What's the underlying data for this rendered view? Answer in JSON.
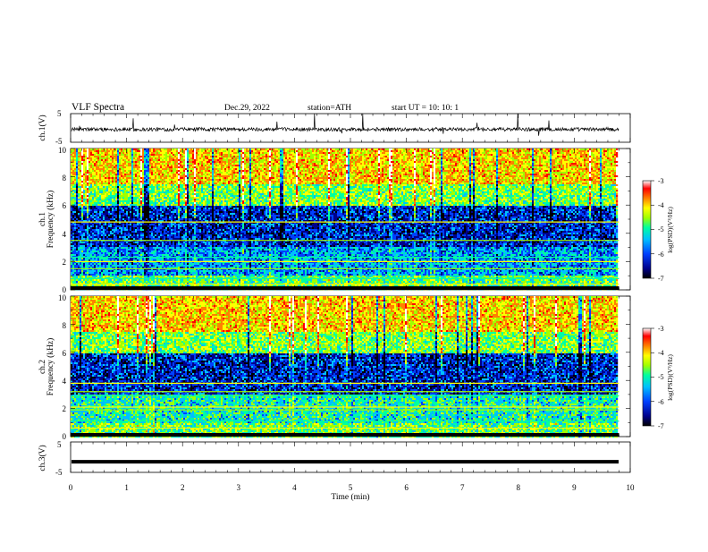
{
  "header": {
    "title": "VLF  Spectra",
    "date": "Dec.29, 2022",
    "station": "station=ATH",
    "start": "start  UT  =    10: 10: 1"
  },
  "chart_data": [
    {
      "type": "line",
      "name": "ch1_waveform",
      "ylabel": "ch.1(V)",
      "yticks": [
        "5",
        "-5"
      ],
      "ylim": [
        -5,
        5
      ],
      "xlim": [
        0,
        10
      ],
      "baseline": -0.5
    },
    {
      "type": "heatmap",
      "name": "ch1_spectrogram",
      "ylabel_top": "ch.1",
      "ylabel": "Frequency  (kHz)",
      "yticks": [
        "10",
        "8",
        "6",
        "4",
        "2",
        "0"
      ],
      "ylim": [
        0,
        10
      ],
      "xlim": [
        0,
        10
      ],
      "data_end_min": 9.8
    },
    {
      "type": "heatmap",
      "name": "ch2_spectrogram",
      "ylabel_top": "ch.2",
      "ylabel": "Frequency  (kHz)",
      "yticks": [
        "10",
        "8",
        "6",
        "4",
        "2",
        "0"
      ],
      "ylim": [
        0,
        10
      ],
      "xlim": [
        0,
        10
      ],
      "data_end_min": 9.8
    },
    {
      "type": "line",
      "name": "ch3_waveform",
      "ylabel": "ch.3(V)",
      "yticks": [
        "5",
        "-5"
      ],
      "ylim": [
        -5,
        5
      ],
      "xlim": [
        0,
        10
      ],
      "baseline": -1.5
    }
  ],
  "xaxis": {
    "label": "Time  (min)",
    "ticks": [
      "0",
      "1",
      "2",
      "3",
      "4",
      "5",
      "6",
      "7",
      "8",
      "9",
      "10"
    ]
  },
  "colorbar": {
    "label": "log(PSD)(V²/Hz)",
    "ticks": [
      "-3",
      "-4",
      "-5",
      "-6",
      "-7"
    ],
    "range": [
      -7,
      -3
    ],
    "colors": [
      "#000000",
      "#00008b",
      "#0040ff",
      "#00c0ff",
      "#00ffa0",
      "#a0ff00",
      "#ffff00",
      "#ff8000",
      "#ff0000",
      "#ffffff"
    ]
  }
}
